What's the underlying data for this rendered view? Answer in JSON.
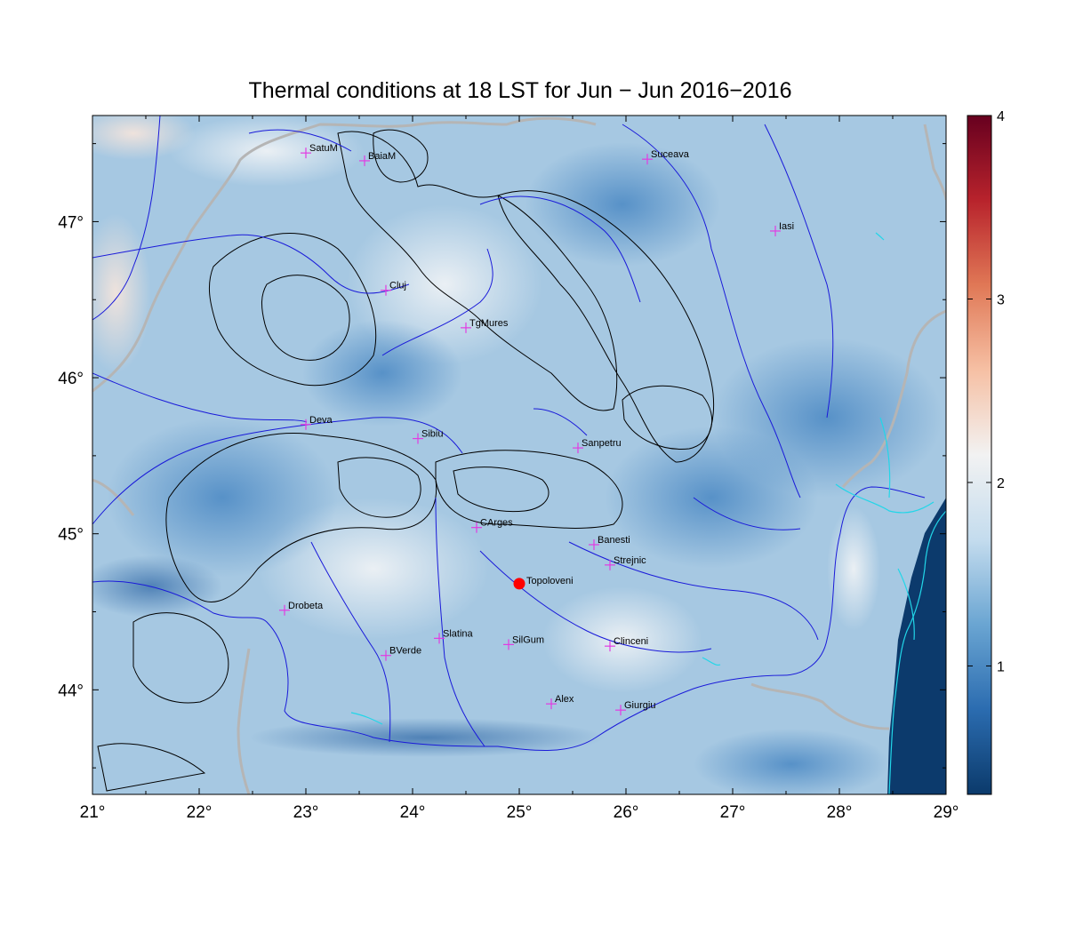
{
  "title": "Thermal conditions at 18 LST for Jun − Jun  2016−2016",
  "map": {
    "lon_range": [
      21,
      29
    ],
    "lat_range": [
      43.33,
      47.68
    ],
    "lon_ticks": [
      {
        "value": 21,
        "label": "21°"
      },
      {
        "value": 22,
        "label": "22°"
      },
      {
        "value": 23,
        "label": "23°"
      },
      {
        "value": 24,
        "label": "24°"
      },
      {
        "value": 25,
        "label": "25°"
      },
      {
        "value": 26,
        "label": "26°"
      },
      {
        "value": 27,
        "label": "27°"
      },
      {
        "value": 28,
        "label": "28°"
      },
      {
        "value": 29,
        "label": "29°"
      }
    ],
    "lat_ticks": [
      {
        "value": 44,
        "label": "44°"
      },
      {
        "value": 45,
        "label": "45°"
      },
      {
        "value": 46,
        "label": "46°"
      },
      {
        "value": 47,
        "label": "47°"
      }
    ],
    "stations": [
      {
        "name": "SatuM",
        "lon": 23.0,
        "lat": 47.44
      },
      {
        "name": "BaiaM",
        "lon": 23.55,
        "lat": 47.39
      },
      {
        "name": "Suceava",
        "lon": 26.2,
        "lat": 47.4
      },
      {
        "name": "Iasi",
        "lon": 27.4,
        "lat": 46.94
      },
      {
        "name": "Cluj",
        "lon": 23.75,
        "lat": 46.56
      },
      {
        "name": "TgMures",
        "lon": 24.5,
        "lat": 46.32
      },
      {
        "name": "Deva",
        "lon": 23.0,
        "lat": 45.7
      },
      {
        "name": "Sibiu",
        "lon": 24.05,
        "lat": 45.61
      },
      {
        "name": "Sanpetru",
        "lon": 25.55,
        "lat": 45.55
      },
      {
        "name": "CArges",
        "lon": 24.6,
        "lat": 45.04
      },
      {
        "name": "Banesti",
        "lon": 25.7,
        "lat": 44.93
      },
      {
        "name": "Strejnic",
        "lon": 25.85,
        "lat": 44.8
      },
      {
        "name": "Drobeta",
        "lon": 22.8,
        "lat": 44.51
      },
      {
        "name": "Slatina",
        "lon": 24.25,
        "lat": 44.33
      },
      {
        "name": "SilGum",
        "lon": 24.9,
        "lat": 44.29
      },
      {
        "name": "Clinceni",
        "lon": 25.85,
        "lat": 44.28
      },
      {
        "name": "BVerde",
        "lon": 23.75,
        "lat": 44.22
      },
      {
        "name": "Alex",
        "lon": 25.3,
        "lat": 43.91
      },
      {
        "name": "Giurgiu",
        "lon": 25.95,
        "lat": 43.87
      }
    ],
    "highlight": {
      "name": "Topoloveni",
      "lon": 25.0,
      "lat": 44.68,
      "color": "#ff0000"
    },
    "colors": {
      "station_marker": "#e23be2",
      "rivers": "#1a1ad9",
      "contours": "#000000",
      "borders": "#b5b5b5",
      "coast": "#22d6e8",
      "field_base": "#a6c8e2"
    }
  },
  "colorbar": {
    "range": [
      0.3,
      4.0
    ],
    "ticks": [
      {
        "value": 1,
        "label": "1"
      },
      {
        "value": 2,
        "label": "2"
      },
      {
        "value": 3,
        "label": "3"
      },
      {
        "value": 4,
        "label": "4"
      }
    ],
    "colors": [
      "#0b3a6b",
      "#2b6cb0",
      "#6aa5d2",
      "#c4dcee",
      "#f2f2f2",
      "#f6c0a4",
      "#e07856",
      "#b8232c",
      "#67001f"
    ]
  }
}
